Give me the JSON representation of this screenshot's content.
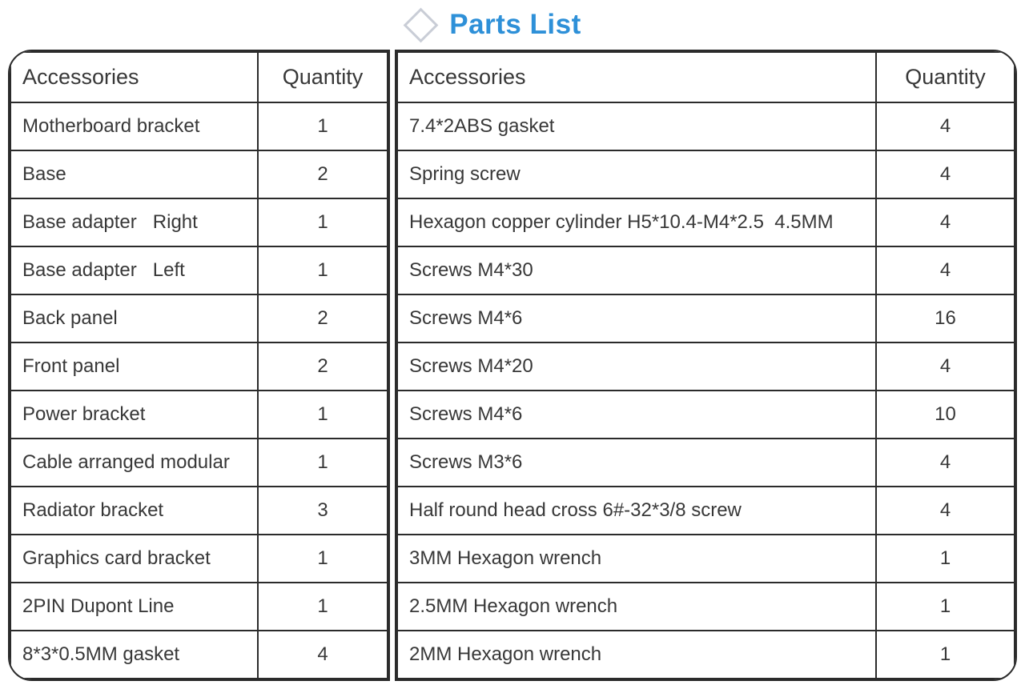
{
  "header": {
    "title": "Parts List",
    "icon": "diamond-icon"
  },
  "colors": {
    "title": "#2E90D8",
    "border": "#2b2b2b",
    "text": "#383838",
    "diamond_outline": "#c9cdd6",
    "background": "#ffffff"
  },
  "tables": [
    {
      "name": "left-parts-table",
      "headers": [
        "Accessories",
        "Quantity"
      ],
      "rows": [
        [
          "Motherboard bracket",
          "1"
        ],
        [
          "Base",
          "2"
        ],
        [
          "Base adapter   Right",
          "1"
        ],
        [
          "Base adapter   Left",
          "1"
        ],
        [
          "Back panel",
          "2"
        ],
        [
          "Front panel",
          "2"
        ],
        [
          "Power bracket",
          "1"
        ],
        [
          "Cable arranged modular",
          "1"
        ],
        [
          "Radiator bracket",
          "3"
        ],
        [
          "Graphics card bracket",
          "1"
        ],
        [
          "2PIN Dupont Line",
          "1"
        ],
        [
          "8*3*0.5MM gasket",
          "4"
        ]
      ]
    },
    {
      "name": "right-parts-table",
      "headers": [
        "Accessories",
        "Quantity"
      ],
      "rows": [
        [
          "7.4*2ABS gasket",
          "4"
        ],
        [
          "Spring screw",
          "4"
        ],
        [
          "Hexagon copper cylinder H5*10.4-M4*2.5  4.5MM",
          "4"
        ],
        [
          "Screws M4*30",
          "4"
        ],
        [
          "Screws M4*6",
          "16"
        ],
        [
          "Screws M4*20",
          "4"
        ],
        [
          "Screws M4*6",
          "10"
        ],
        [
          "Screws M3*6",
          "4"
        ],
        [
          "Half round head cross 6#-32*3/8 screw",
          "4"
        ],
        [
          "3MM Hexagon wrench",
          "1"
        ],
        [
          "2.5MM Hexagon wrench",
          "1"
        ],
        [
          "2MM Hexagon wrench",
          "1"
        ]
      ]
    }
  ]
}
